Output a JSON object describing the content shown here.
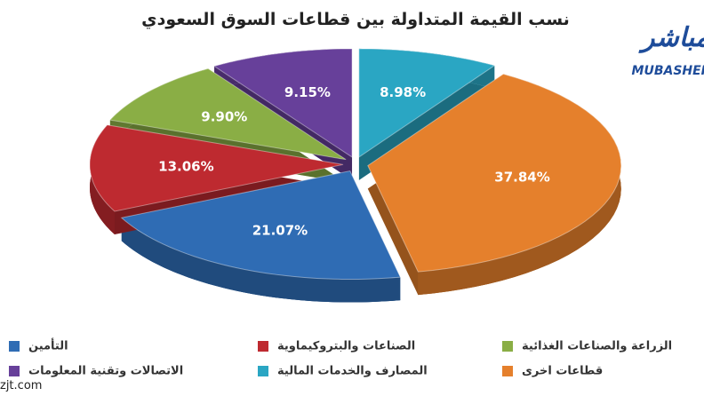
{
  "chart_data": {
    "type": "pie",
    "title": "نسب القيمة المتداولة بين قطاعات السوق السعودي",
    "categories": [
      "المصارف والخدمات المالية",
      "قطاعات اخرى",
      "التأمين",
      "الصناعات والبتروكيماوية",
      "الزراعة والصناعات الغذائية",
      "الاتصالات وتقنية المعلومات"
    ],
    "values": [
      8.98,
      37.84,
      21.07,
      13.06,
      9.9,
      9.15
    ],
    "value_labels": [
      "8.98%",
      "37.84%",
      "21.07%",
      "13.06%",
      "9.90%",
      "9.15%"
    ],
    "colors": [
      "#2aa6c3",
      "#e5802c",
      "#2f6cb4",
      "#be2a30",
      "#8aae45",
      "#67409a"
    ]
  },
  "logo": {
    "arabic": "مباشر",
    "latin": "MUBASHER"
  },
  "watermark": "zjt.com"
}
